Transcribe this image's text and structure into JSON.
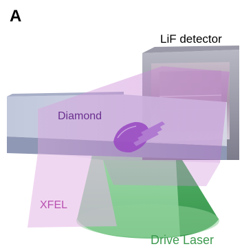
{
  "figure": {
    "panel_letter": "A",
    "labels": {
      "detector": "LiF detector",
      "diamond": "Diamond",
      "xfel": "XFEL",
      "drive_laser": "Drive Laser"
    },
    "colors": {
      "diamond_label": "#6a2f8f",
      "xfel_label": "#b84fb0",
      "drive_label": "#3d9a4f",
      "xfel_beam": "#c77fd1",
      "drive_beam": "#8cd39a",
      "sample": "#9a4bc2"
    }
  }
}
